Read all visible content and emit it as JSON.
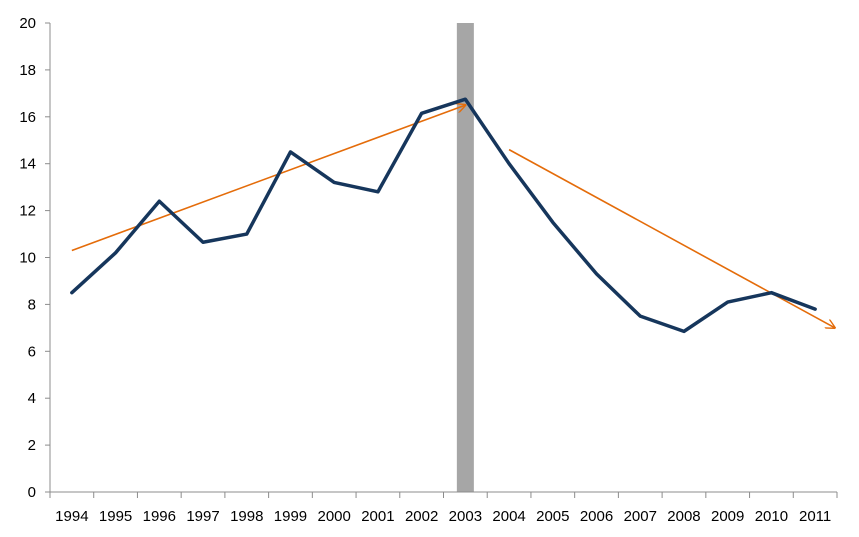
{
  "chart_data": {
    "type": "line",
    "categories": [
      "1994",
      "1995",
      "1996",
      "1997",
      "1998",
      "1999",
      "2000",
      "2001",
      "2002",
      "2003",
      "2004",
      "2005",
      "2006",
      "2007",
      "2008",
      "2009",
      "2010",
      "2011"
    ],
    "series": [
      {
        "values": [
          8.5,
          10.2,
          12.4,
          10.65,
          11.0,
          14.5,
          13.2,
          12.8,
          16.15,
          16.75,
          14.0,
          11.5,
          9.3,
          7.5,
          6.85,
          8.1,
          8.5,
          7.8
        ],
        "color": "#16365c"
      }
    ],
    "ylim": [
      0,
      20
    ],
    "yticks": [
      0,
      2,
      4,
      6,
      8,
      10,
      12,
      14,
      16,
      18,
      20
    ],
    "grid": false,
    "legend": "none",
    "highlight_band": {
      "category": "2003",
      "color": "#a6a6a6"
    },
    "trend_arrows": [
      {
        "from": {
          "x": "1994",
          "y": 10.3
        },
        "to": {
          "x": "2003",
          "y": 16.5
        },
        "color": "#e46c0a"
      },
      {
        "from": {
          "x": "2004",
          "y": 14.6
        },
        "to": {
          "x": "2011",
          "y": 7.0
        },
        "color": "#e46c0a"
      }
    ]
  }
}
